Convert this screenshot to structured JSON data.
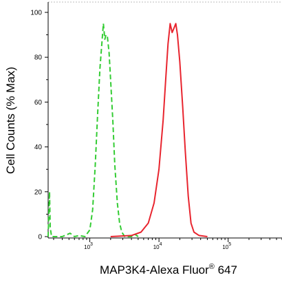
{
  "chart_data": {
    "type": "line",
    "title": "",
    "xlabel": "MAP3K4-Alexa Fluor",
    "xlabel_superscript": "®",
    "xlabel_suffix": " 647",
    "ylabel": "Cell Counts (% Max)",
    "xscale": "log",
    "xlim": [
      250,
      600000
    ],
    "ylim": [
      0,
      100
    ],
    "grid": false,
    "legend": "none",
    "y_ticks": [
      0,
      20,
      40,
      60,
      80,
      100
    ],
    "y_tick_labels": [
      "0",
      "20",
      "40",
      "60",
      "80",
      "100"
    ],
    "x_major_ticks": [
      1000,
      10000,
      100000
    ],
    "x_tick_labels": [
      {
        "base": "10",
        "exp": "3"
      },
      {
        "base": "10",
        "exp": "4"
      },
      {
        "base": "10",
        "exp": "5"
      }
    ],
    "series": [
      {
        "color": "#33cc33",
        "dash": "dashed",
        "points": [
          [
            250,
            0
          ],
          [
            262,
            20
          ],
          [
            268,
            4
          ],
          [
            280,
            0
          ],
          [
            400,
            0
          ],
          [
            520,
            1.5
          ],
          [
            600,
            0
          ],
          [
            700,
            0.5
          ],
          [
            850,
            0
          ],
          [
            1000,
            3
          ],
          [
            1100,
            12
          ],
          [
            1200,
            32
          ],
          [
            1300,
            55
          ],
          [
            1400,
            75
          ],
          [
            1500,
            87
          ],
          [
            1570,
            95
          ],
          [
            1650,
            88
          ],
          [
            1720,
            90
          ],
          [
            1800,
            89
          ],
          [
            1900,
            82
          ],
          [
            2000,
            70
          ],
          [
            2150,
            52
          ],
          [
            2300,
            32
          ],
          [
            2500,
            15
          ],
          [
            2700,
            6
          ],
          [
            2900,
            2
          ],
          [
            3200,
            0
          ],
          [
            4000,
            0
          ],
          [
            4500,
            1
          ],
          [
            5000,
            0
          ]
        ]
      },
      {
        "color": "#e8242e",
        "dash": "solid",
        "points": [
          [
            2000,
            0
          ],
          [
            4000,
            0.5
          ],
          [
            5500,
            2
          ],
          [
            7000,
            6
          ],
          [
            8500,
            15
          ],
          [
            10000,
            30
          ],
          [
            11500,
            52
          ],
          [
            12500,
            70
          ],
          [
            13500,
            86
          ],
          [
            14500,
            95
          ],
          [
            15500,
            91
          ],
          [
            16500,
            93
          ],
          [
            17500,
            95
          ],
          [
            18500,
            90
          ],
          [
            20000,
            78
          ],
          [
            22000,
            58
          ],
          [
            24000,
            38
          ],
          [
            26500,
            18
          ],
          [
            29000,
            6
          ],
          [
            32000,
            2
          ],
          [
            38000,
            0.5
          ],
          [
            50000,
            0
          ]
        ]
      }
    ]
  }
}
